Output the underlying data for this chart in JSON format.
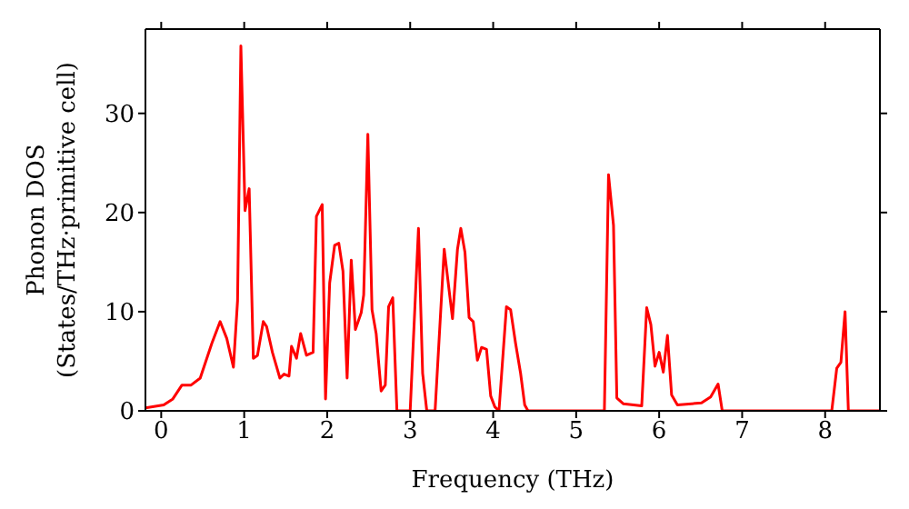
{
  "chart_data": {
    "type": "line",
    "xlabel": "Frequency (THz)",
    "ylabel": "Phonon DOS\n(States/THz·primitive cell)",
    "x": [
      -0.19,
      0.03,
      0.14,
      0.25,
      0.36,
      0.47,
      0.61,
      0.71,
      0.79,
      0.87,
      0.92,
      0.96,
      1.01,
      1.06,
      1.11,
      1.16,
      1.23,
      1.27,
      1.34,
      1.43,
      1.48,
      1.54,
      1.57,
      1.63,
      1.68,
      1.75,
      1.83,
      1.87,
      1.94,
      1.98,
      2.03,
      2.09,
      2.14,
      2.19,
      2.24,
      2.29,
      2.34,
      2.41,
      2.44,
      2.49,
      2.54,
      2.59,
      2.65,
      2.7,
      2.74,
      2.79,
      2.84,
      3.0,
      3.1,
      3.15,
      3.2,
      3.3,
      3.41,
      3.51,
      3.57,
      3.61,
      3.66,
      3.71,
      3.76,
      3.81,
      3.86,
      3.92,
      3.97,
      4.02,
      4.07,
      4.16,
      4.21,
      4.27,
      4.33,
      4.38,
      4.42,
      5.34,
      5.39,
      5.45,
      5.49,
      5.57,
      5.79,
      5.85,
      5.9,
      5.95,
      6.0,
      6.05,
      6.1,
      6.15,
      6.22,
      6.51,
      6.62,
      6.71,
      6.76,
      8.08,
      8.14,
      8.19,
      8.24,
      8.28,
      8.66
    ],
    "series": [
      {
        "color": "#ff0000",
        "values": [
          0.3,
          0.6,
          1.2,
          2.6,
          2.6,
          3.3,
          6.8,
          9.0,
          7.3,
          4.4,
          11.1,
          36.8,
          20.2,
          22.4,
          5.3,
          5.6,
          9.0,
          8.5,
          5.9,
          3.3,
          3.7,
          3.5,
          6.5,
          5.3,
          7.8,
          5.6,
          5.9,
          19.6,
          20.8,
          1.2,
          12.9,
          16.7,
          16.9,
          14.1,
          3.3,
          15.2,
          8.2,
          9.9,
          11.7,
          27.9,
          10.2,
          7.8,
          2.0,
          2.6,
          10.5,
          11.4,
          0,
          0,
          18.4,
          3.8,
          0,
          0,
          16.3,
          9.3,
          16.3,
          18.4,
          16.0,
          9.4,
          9.0,
          5.1,
          6.4,
          6.2,
          1.5,
          0.4,
          0,
          10.5,
          10.2,
          6.8,
          3.8,
          0.6,
          0,
          0,
          23.8,
          18.7,
          1.3,
          0.7,
          0.5,
          10.4,
          8.7,
          4.5,
          5.9,
          3.9,
          7.6,
          1.6,
          0.6,
          0.8,
          1.4,
          2.7,
          0,
          0,
          4.3,
          4.9,
          10.0,
          0,
          0
        ]
      }
    ],
    "xlim": [
      -0.19,
      8.66
    ],
    "xticks": [
      0,
      1,
      2,
      3,
      4,
      5,
      6,
      7,
      8
    ],
    "ylim": [
      0,
      38.5
    ],
    "yticks": [
      0,
      10,
      20,
      30
    ],
    "grid": false,
    "legend": false,
    "marker": "none",
    "line_style": "solid"
  }
}
